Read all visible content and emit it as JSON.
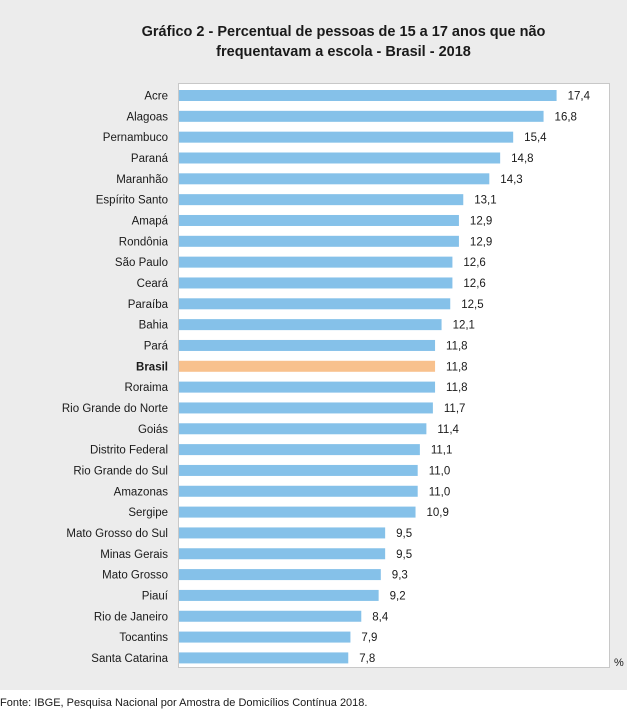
{
  "chart_data": {
    "type": "bar",
    "orientation": "horizontal",
    "title_lines": [
      "Gráfico 2 - Percentual de pessoas de 15 a 17 anos que não",
      "frequentavam a escola - Brasil - 2018"
    ],
    "xlabel": "%",
    "ylabel": "",
    "grid": false,
    "categories": [
      "Acre",
      "Alagoas",
      "Pernambuco",
      "Paraná",
      "Maranhão",
      "Espírito Santo",
      "Amapá",
      "Rondônia",
      "São Paulo",
      "Ceará",
      "Paraíba",
      "Bahia",
      "Pará",
      "Brasil",
      "Roraima",
      "Rio Grande do Norte",
      "Goiás",
      "Distrito Federal",
      "Rio Grande do Sul",
      "Amazonas",
      "Sergipe",
      "Mato Grosso do Sul",
      "Minas Gerais",
      "Mato Grosso",
      "Piauí",
      "Rio de Janeiro",
      "Tocantins",
      "Santa Catarina"
    ],
    "values": [
      17.4,
      16.8,
      15.4,
      14.8,
      14.3,
      13.1,
      12.9,
      12.9,
      12.6,
      12.6,
      12.5,
      12.1,
      11.8,
      11.8,
      11.8,
      11.7,
      11.4,
      11.1,
      11.0,
      11.0,
      10.9,
      9.5,
      9.5,
      9.3,
      9.2,
      8.4,
      7.9,
      7.8
    ],
    "value_labels": [
      "17,4",
      "16,8",
      "15,4",
      "14,8",
      "14,3",
      "13,1",
      "12,9",
      "12,9",
      "12,6",
      "12,6",
      "12,5",
      "12,1",
      "11,8",
      "11,8",
      "11,8",
      "11,7",
      "11,4",
      "11,1",
      "11,0",
      "11,0",
      "10,9",
      "9,5",
      "9,5",
      "9,3",
      "9,2",
      "8,4",
      "7,9",
      "7,8"
    ],
    "highlight_category": "Brasil",
    "colors": {
      "bar": "#85c1e9",
      "highlight": "#f8c18d"
    },
    "xlim": [
      0,
      20
    ]
  },
  "footer": {
    "source": "Fonte: IBGE, Pesquisa Nacional por Amostra de Domicílios Contínua 2018."
  }
}
